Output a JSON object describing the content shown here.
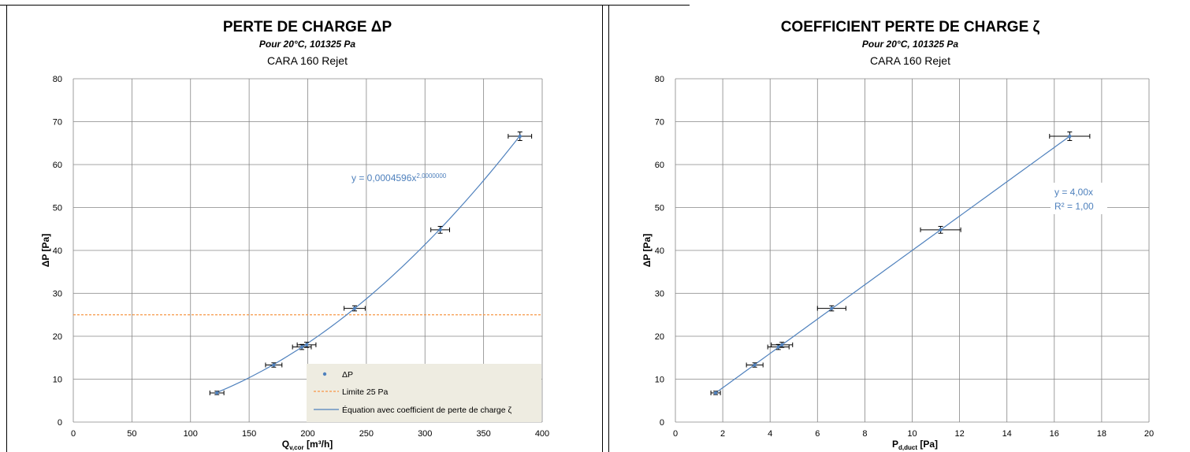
{
  "chart_data": [
    {
      "id": "left",
      "type": "scatter",
      "title": "PERTE DE CHARGE ΔP",
      "subtitle": "Pour 20°C, 101325 Pa",
      "chart_subtitle": "CARA 160 Rejet",
      "xlabel_main": "Q",
      "xlabel_sub": "v,cor",
      "xlabel_rest": " [m³/h]",
      "ylabel": "ΔP [Pa]",
      "xlim": [
        0,
        400
      ],
      "ylim": [
        0,
        80
      ],
      "xticks": [
        "0",
        "50",
        "100",
        "150",
        "200",
        "250",
        "300",
        "350",
        "400"
      ],
      "yticks": [
        "0",
        "10",
        "20",
        "30",
        "40",
        "50",
        "60",
        "70",
        "80"
      ],
      "grid": true,
      "equation_text": "y = 0,0004596x",
      "equation_exp": "2,0000000",
      "fit": {
        "kind": "power",
        "a": 0.0004596,
        "b": 2.0,
        "x_from": 122.5,
        "x_to": 381
      },
      "reference_line": {
        "name": "Limite 25 Pa",
        "y": 25,
        "color": "#f79646"
      },
      "points": [
        {
          "x": 122.5,
          "y": 6.8,
          "xerr": 6,
          "yerr": 0.4
        },
        {
          "x": 171,
          "y": 13.3,
          "xerr": 7,
          "yerr": 0.5
        },
        {
          "x": 195,
          "y": 17.5,
          "xerr": 8,
          "yerr": 0.6
        },
        {
          "x": 199,
          "y": 18.0,
          "xerr": 8,
          "yerr": 0.6
        },
        {
          "x": 240,
          "y": 26.5,
          "xerr": 9,
          "yerr": 0.6
        },
        {
          "x": 313,
          "y": 44.8,
          "xerr": 8,
          "yerr": 0.8
        },
        {
          "x": 381,
          "y": 66.6,
          "xerr": 10,
          "yerr": 1.0
        }
      ],
      "legend": {
        "placement": "bottom-right",
        "items": [
          "ΔP",
          "Limite 25 Pa",
          "Équation avec coefficient de perte de charge ζ"
        ]
      },
      "colors": {
        "series": "#4f81bd",
        "errorbar": "#000000",
        "legend_bg": "#eeece1"
      }
    },
    {
      "id": "right",
      "type": "scatter",
      "title": "COEFFICIENT PERTE DE CHARGE ζ",
      "subtitle": "Pour 20°C, 101325 Pa",
      "chart_subtitle": "CARA 160 Rejet",
      "xlabel_main": "P",
      "xlabel_sub": "d,duct",
      "xlabel_rest": " [Pa]",
      "ylabel": "ΔP [Pa]",
      "xlim": [
        0,
        20
      ],
      "ylim": [
        0,
        80
      ],
      "xticks": [
        "0",
        "2",
        "4",
        "6",
        "8",
        "10",
        "12",
        "14",
        "16",
        "18",
        "20"
      ],
      "yticks": [
        "0",
        "10",
        "20",
        "30",
        "40",
        "50",
        "60",
        "70",
        "80"
      ],
      "grid": true,
      "equation_text": "y = 4,00x",
      "r2_text": "R² = 1,00",
      "fit": {
        "kind": "linear",
        "a": 4.0,
        "x_from": 1.7,
        "x_to": 16.65
      },
      "points": [
        {
          "x": 1.7,
          "y": 6.8,
          "xerr": 0.2,
          "yerr": 0.4
        },
        {
          "x": 3.35,
          "y": 13.3,
          "xerr": 0.35,
          "yerr": 0.5
        },
        {
          "x": 4.35,
          "y": 17.5,
          "xerr": 0.45,
          "yerr": 0.6
        },
        {
          "x": 4.5,
          "y": 18.0,
          "xerr": 0.45,
          "yerr": 0.6
        },
        {
          "x": 6.6,
          "y": 26.5,
          "xerr": 0.6,
          "yerr": 0.6
        },
        {
          "x": 11.2,
          "y": 44.8,
          "xerr": 0.85,
          "yerr": 0.8
        },
        {
          "x": 16.65,
          "y": 66.6,
          "xerr": 0.85,
          "yerr": 1.0
        }
      ],
      "colors": {
        "series": "#4f81bd",
        "errorbar": "#000000"
      }
    }
  ]
}
